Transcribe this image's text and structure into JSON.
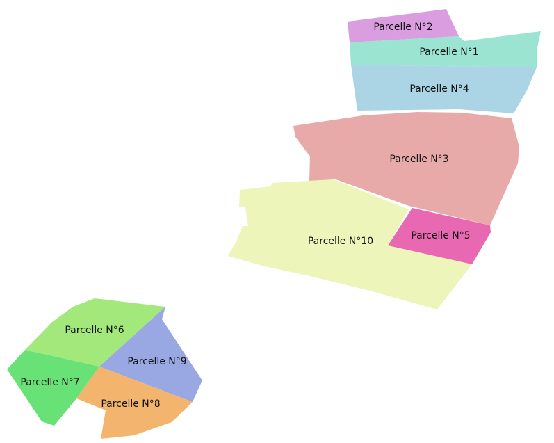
{
  "map": {
    "parcels": [
      {
        "id": "p2",
        "label": "Parcelle N°2",
        "color": "#d99de0"
      },
      {
        "id": "p1",
        "label": "Parcelle N°1",
        "color": "#9ae4d1"
      },
      {
        "id": "p4",
        "label": "Parcelle N°4",
        "color": "#abd5e4"
      },
      {
        "id": "p3",
        "label": "Parcelle N°3",
        "color": "#e8aaa9"
      },
      {
        "id": "p10",
        "label": "Parcelle N°10",
        "color": "#edf5bb"
      },
      {
        "id": "p5",
        "label": "Parcelle N°5",
        "color": "#e869b2"
      },
      {
        "id": "p6",
        "label": "Parcelle N°6",
        "color": "#a3e87b"
      },
      {
        "id": "p9",
        "label": "Parcelle N°9",
        "color": "#99a8e2"
      },
      {
        "id": "p7",
        "label": "Parcelle N°7",
        "color": "#68e176"
      },
      {
        "id": "p8",
        "label": "Parcelle N°8",
        "color": "#f3b56d"
      }
    ]
  }
}
